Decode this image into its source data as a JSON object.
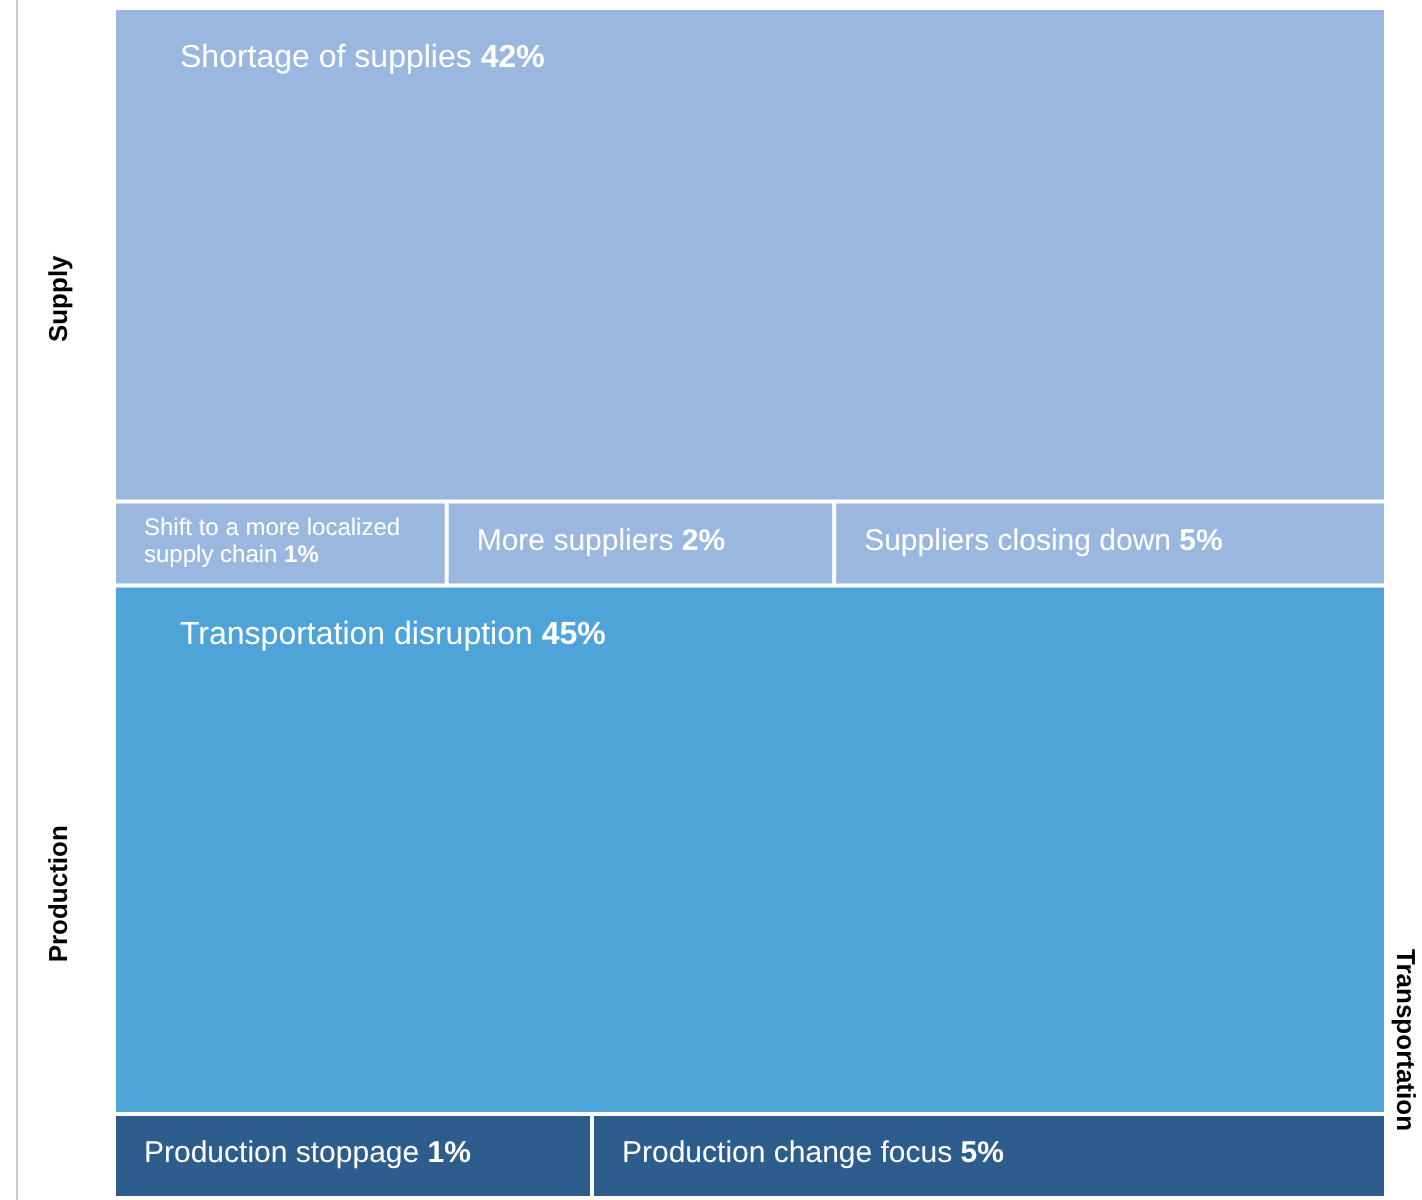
{
  "chart_data": {
    "type": "other",
    "categories": [
      "Shortage of supplies",
      "Shift to a more localized supply chain",
      "More suppliers",
      "Suppliers closing down",
      "Transportation disruption",
      "Production stoppage",
      "Production change focus"
    ],
    "series": [
      {
        "name": "Supply",
        "values": [
          42,
          1,
          2,
          5,
          null,
          null,
          null
        ],
        "value_labels": [
          "42%",
          "1%",
          "2%",
          "5%",
          null,
          null,
          null
        ],
        "colors": [
          "#9ab8df",
          "#9ab8df",
          "#9ab8df",
          "#9ab8df",
          null,
          null,
          null
        ]
      },
      {
        "name": "Production",
        "values": [
          null,
          null,
          null,
          null,
          45,
          1,
          5
        ],
        "value_labels": [
          null,
          null,
          null,
          null,
          "45%",
          "1%",
          "5%"
        ],
        "colors": [
          null,
          null,
          null,
          null,
          "#4ea3d9",
          "#2c5d8c",
          "#2c5d8c"
        ]
      }
    ],
    "annotations": [
      "Transportation"
    ]
  }
}
